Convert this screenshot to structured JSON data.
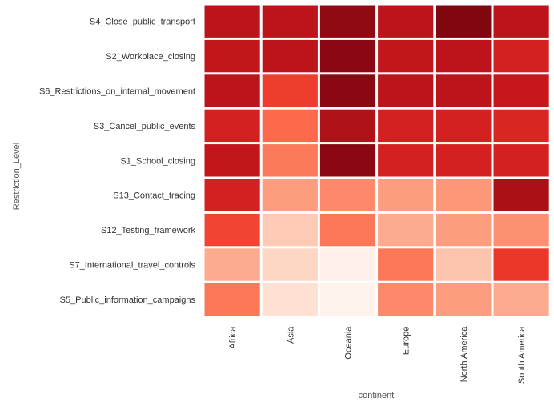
{
  "chart_data": {
    "type": "heatmap",
    "title": "",
    "xlabel": "continent",
    "ylabel": "Restriction_Level",
    "grid": false,
    "legend": "none",
    "x_categories": [
      "Africa",
      "Asia",
      "Oceania",
      "Europe",
      "North America",
      "South America"
    ],
    "y_categories": [
      "S4_Close_public_transport",
      "S2_Workplace_closing",
      "S6_Restrictions_on_internal_movement",
      "S3_Cancel_public_events",
      "S1_School_closing",
      "S13_Contact_tracing",
      "S12_Testing_framework",
      "S7_International_travel_controls",
      "S5_Public_information_campaigns"
    ],
    "values": [
      [
        0.8,
        0.8,
        0.92,
        0.8,
        0.95,
        0.8
      ],
      [
        0.78,
        0.8,
        0.93,
        0.78,
        0.8,
        0.72
      ],
      [
        0.8,
        0.62,
        0.93,
        0.8,
        0.8,
        0.76
      ],
      [
        0.72,
        0.5,
        0.84,
        0.72,
        0.72,
        0.7
      ],
      [
        0.78,
        0.45,
        0.93,
        0.72,
        0.72,
        0.72
      ],
      [
        0.72,
        0.34,
        0.4,
        0.34,
        0.36,
        0.86
      ],
      [
        0.6,
        0.2,
        0.46,
        0.3,
        0.34,
        0.38
      ],
      [
        0.3,
        0.16,
        0.03,
        0.46,
        0.22,
        0.64
      ],
      [
        0.46,
        0.12,
        0.02,
        0.4,
        0.34,
        0.3
      ]
    ],
    "color_scale": [
      "#fff5f0",
      "#fee0d2",
      "#fcbba1",
      "#fc9272",
      "#fb6a4a",
      "#ef3b2c",
      "#cb181d",
      "#a50f15",
      "#67000d"
    ]
  }
}
